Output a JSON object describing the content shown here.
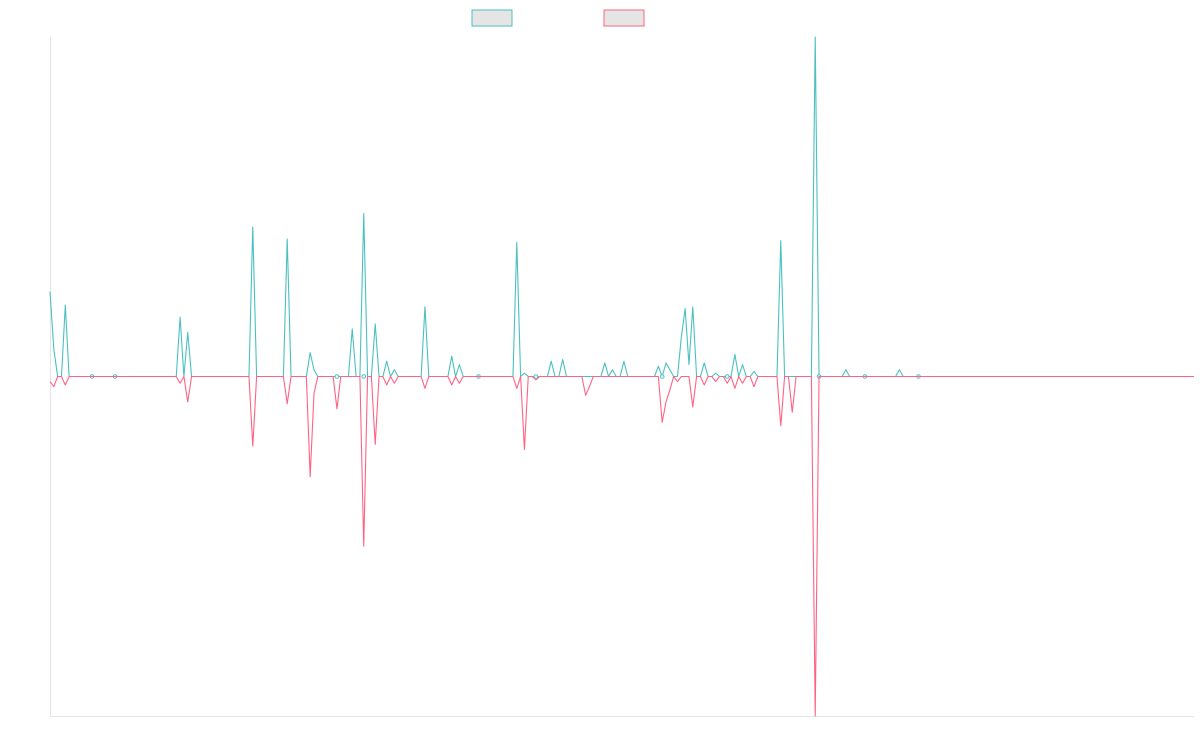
{
  "chart_data": {
    "type": "line",
    "title": "",
    "xlabel": "",
    "ylabel": "",
    "grid": false,
    "legend_position": "top-center",
    "ylim": [
      -1000,
      1000
    ],
    "n_points": 300,
    "series": [
      {
        "color": "#4bc0c0",
        "fill": "#e5e5e5",
        "points": [
          [
            0,
            250
          ],
          [
            1,
            80
          ],
          [
            4,
            210
          ],
          [
            11,
            0
          ],
          [
            17,
            0
          ],
          [
            34,
            175
          ],
          [
            36,
            130
          ],
          [
            53,
            440
          ],
          [
            62,
            405
          ],
          [
            68,
            70
          ],
          [
            69,
            20
          ],
          [
            75,
            0
          ],
          [
            79,
            140
          ],
          [
            82,
            0
          ],
          [
            82,
            480
          ],
          [
            85,
            155
          ],
          [
            88,
            45
          ],
          [
            90,
            20
          ],
          [
            98,
            205
          ],
          [
            105,
            60
          ],
          [
            107,
            35
          ],
          [
            112,
            0
          ],
          [
            122,
            395
          ],
          [
            124,
            10
          ],
          [
            127,
            0
          ],
          [
            131,
            45
          ],
          [
            134,
            50
          ],
          [
            145,
            40
          ],
          [
            147,
            20
          ],
          [
            150,
            45
          ],
          [
            159,
            30
          ],
          [
            160,
            0
          ],
          [
            161,
            40
          ],
          [
            162,
            20
          ],
          [
            165,
            115
          ],
          [
            166,
            200
          ],
          [
            167,
            35
          ],
          [
            168,
            205
          ],
          [
            171,
            40
          ],
          [
            174,
            10
          ],
          [
            177,
            0
          ],
          [
            179,
            65
          ],
          [
            181,
            35
          ],
          [
            184,
            15
          ],
          [
            191,
            400
          ],
          [
            200,
            1050
          ],
          [
            201,
            0
          ],
          [
            208,
            20
          ],
          [
            213,
            0
          ],
          [
            222,
            20
          ],
          [
            227,
            0
          ]
        ]
      },
      {
        "color": "#ff6384",
        "fill": "#e5e5e5",
        "points": [
          [
            0,
            -15
          ],
          [
            1,
            -30
          ],
          [
            4,
            -25
          ],
          [
            34,
            -20
          ],
          [
            36,
            -75
          ],
          [
            53,
            -205
          ],
          [
            62,
            -80
          ],
          [
            68,
            -295
          ],
          [
            69,
            -50
          ],
          [
            75,
            -95
          ],
          [
            82,
            -500
          ],
          [
            85,
            -200
          ],
          [
            88,
            -25
          ],
          [
            90,
            -20
          ],
          [
            98,
            -35
          ],
          [
            105,
            -25
          ],
          [
            107,
            -20
          ],
          [
            122,
            -35
          ],
          [
            124,
            -215
          ],
          [
            127,
            -10
          ],
          [
            140,
            -55
          ],
          [
            141,
            -30
          ],
          [
            160,
            -135
          ],
          [
            161,
            -75
          ],
          [
            162,
            -40
          ],
          [
            164,
            -15
          ],
          [
            168,
            -90
          ],
          [
            171,
            -25
          ],
          [
            174,
            -15
          ],
          [
            177,
            -20
          ],
          [
            179,
            -35
          ],
          [
            181,
            -20
          ],
          [
            184,
            -30
          ],
          [
            191,
            -145
          ],
          [
            194,
            -105
          ],
          [
            200,
            -1050
          ]
        ]
      }
    ]
  }
}
